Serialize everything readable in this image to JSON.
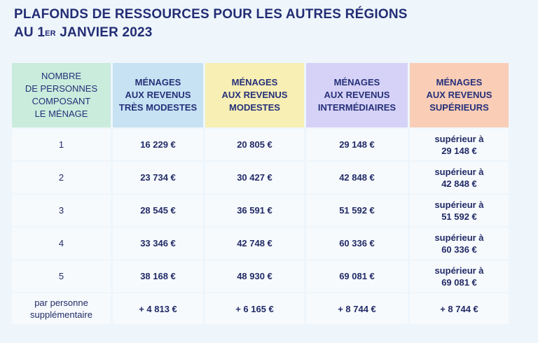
{
  "title": {
    "line1": "PLAFONDS DE RESSOURCES POUR LES AUTRES RÉGIONS",
    "line2_prefix": "AU 1",
    "line2_sup": "ER",
    "line2_suffix": " JANVIER 2023"
  },
  "table": {
    "headers": {
      "persons": [
        "NOMBRE",
        "DE PERSONNES",
        "COMPOSANT",
        "LE MÉNAGE"
      ],
      "tres_modestes": [
        "MÉNAGES",
        "AUX REVENUS",
        "TRÈS MODESTES"
      ],
      "modestes": [
        "MÉNAGES",
        "AUX REVENUS",
        "MODESTES"
      ],
      "intermediaires": [
        "MÉNAGES",
        "AUX REVENUS",
        "INTERMÉDIAIRES"
      ],
      "superieurs": [
        "MÉNAGES",
        "AUX REVENUS",
        "SUPÉRIEURS"
      ]
    },
    "rows": [
      {
        "persons": "1",
        "tres_modestes": "16 229 €",
        "modestes": "20 805 €",
        "intermediaires": "29 148 €",
        "sup_label": "supérieur à",
        "sup_value": "29 148 €"
      },
      {
        "persons": "2",
        "tres_modestes": "23 734 €",
        "modestes": "30 427 €",
        "intermediaires": "42 848 €",
        "sup_label": "supérieur à",
        "sup_value": "42 848 €"
      },
      {
        "persons": "3",
        "tres_modestes": "28 545 €",
        "modestes": "36 591 €",
        "intermediaires": "51 592 €",
        "sup_label": "supérieur à",
        "sup_value": "51 592 €"
      },
      {
        "persons": "4",
        "tres_modestes": "33 346 €",
        "modestes": "42 748 €",
        "intermediaires": "60 336 €",
        "sup_label": "supérieur à",
        "sup_value": "60 336 €"
      },
      {
        "persons": "5",
        "tres_modestes": "38 168 €",
        "modestes": "48 930 €",
        "intermediaires": "69 081 €",
        "sup_label": "supérieur à",
        "sup_value": "69 081 €"
      }
    ],
    "extra_row": {
      "persons_line1": "par personne",
      "persons_line2": "supplémentaire",
      "tres_modestes": "+ 4 813 €",
      "modestes": "+ 6 165 €",
      "intermediaires": "+ 8 744 €",
      "superieurs": "+ 8 744 €"
    }
  },
  "colors": {
    "title": "#232d74",
    "header_persons": "#c9ecdc",
    "header_tres_modestes": "#c6e2f3",
    "header_modestes": "#f7efb4",
    "header_intermediaires": "#d6d2f7",
    "header_superieurs": "#f9cdb6",
    "page_background": "#eef6fc"
  }
}
